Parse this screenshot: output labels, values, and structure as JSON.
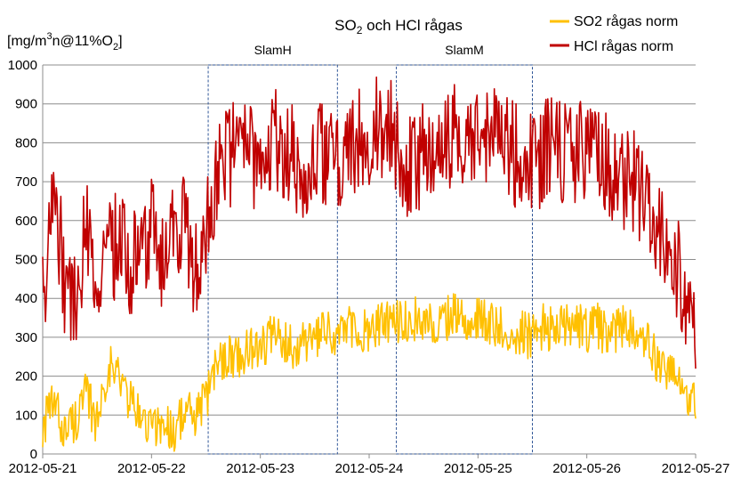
{
  "chart_data": {
    "type": "line",
    "title": {
      "main": "SO",
      "sub": "2",
      "rest": " och HCl rågas"
    },
    "ylabel": {
      "a": "[mg/m",
      "sup": "3",
      "b": "n@11%O",
      "sub": "2",
      "c": "]"
    },
    "ylim": [
      0,
      1000
    ],
    "yticks": [
      "0",
      "100",
      "200",
      "300",
      "400",
      "500",
      "600",
      "700",
      "800",
      "900",
      "1000"
    ],
    "xlim": [
      "2012-05-21",
      "2012-05-27"
    ],
    "xticks": [
      "2012-05-21",
      "2012-05-22",
      "2012-05-23",
      "2012-05-24",
      "2012-05-25",
      "2012-05-26",
      "2012-05-27"
    ],
    "grid": true,
    "legend_position": "top-right",
    "annotations": [
      {
        "label": "SlamH",
        "x_start": "2012-05-22 12:30",
        "x_end": "2012-05-23 17:00",
        "y_start": 0,
        "y_end": 1000
      },
      {
        "label": "SlamM",
        "x_start": "2012-05-24 06:00",
        "x_end": "2012-05-25 12:00",
        "y_start": 0,
        "y_end": 1000
      }
    ],
    "series": [
      {
        "name": "SO2 rågas norm",
        "color": "#ffc000",
        "x_days": [
          0,
          0.1,
          0.2,
          0.3,
          0.4,
          0.5,
          0.6,
          0.7,
          0.8,
          0.9,
          1.0,
          1.1,
          1.2,
          1.3,
          1.4,
          1.5,
          1.6,
          1.7,
          1.8,
          1.9,
          2.0,
          2.1,
          2.2,
          2.3,
          2.4,
          2.5,
          2.6,
          2.7,
          2.8,
          2.9,
          3.0,
          3.1,
          3.2,
          3.3,
          3.4,
          3.5,
          3.6,
          3.7,
          3.8,
          3.9,
          4.0,
          4.1,
          4.2,
          4.3,
          4.4,
          4.5,
          4.6,
          4.7,
          4.8,
          4.9,
          5.0,
          5.1,
          5.2,
          5.3,
          5.4,
          5.5,
          5.6,
          5.7,
          5.8,
          5.9,
          6.0
        ],
        "values": [
          70,
          130,
          60,
          90,
          150,
          80,
          230,
          200,
          140,
          90,
          70,
          80,
          60,
          110,
          90,
          140,
          230,
          260,
          250,
          270,
          280,
          300,
          290,
          280,
          290,
          290,
          310,
          300,
          320,
          320,
          310,
          330,
          340,
          340,
          350,
          340,
          330,
          350,
          360,
          340,
          350,
          330,
          320,
          320,
          310,
          300,
          330,
          320,
          330,
          330,
          320,
          330,
          300,
          320,
          330,
          310,
          260,
          230,
          200,
          150,
          120
        ]
      },
      {
        "name": "HCl rågas norm",
        "color": "#c00000",
        "x_days": [
          0,
          0.1,
          0.2,
          0.3,
          0.4,
          0.5,
          0.6,
          0.7,
          0.8,
          0.9,
          1.0,
          1.1,
          1.2,
          1.3,
          1.4,
          1.5,
          1.6,
          1.7,
          1.8,
          1.9,
          2.0,
          2.1,
          2.2,
          2.3,
          2.4,
          2.5,
          2.6,
          2.7,
          2.8,
          2.9,
          3.0,
          3.1,
          3.2,
          3.3,
          3.4,
          3.5,
          3.6,
          3.7,
          3.8,
          3.9,
          4.0,
          4.1,
          4.2,
          4.3,
          4.4,
          4.5,
          4.6,
          4.7,
          4.8,
          4.9,
          5.0,
          5.1,
          5.2,
          5.3,
          5.4,
          5.5,
          5.6,
          5.7,
          5.8,
          5.9,
          6.0
        ],
        "values": [
          400,
          700,
          450,
          380,
          600,
          420,
          500,
          560,
          480,
          520,
          600,
          480,
          550,
          600,
          460,
          550,
          700,
          760,
          780,
          760,
          760,
          820,
          800,
          760,
          720,
          760,
          780,
          740,
          790,
          800,
          810,
          840,
          830,
          760,
          720,
          780,
          760,
          800,
          850,
          820,
          780,
          800,
          800,
          780,
          760,
          760,
          770,
          780,
          760,
          780,
          760,
          790,
          740,
          720,
          700,
          680,
          640,
          560,
          500,
          420,
          300
        ]
      }
    ]
  },
  "legend": {
    "so2": "SO2 rågas norm",
    "hcl": "HCl rågas norm"
  }
}
